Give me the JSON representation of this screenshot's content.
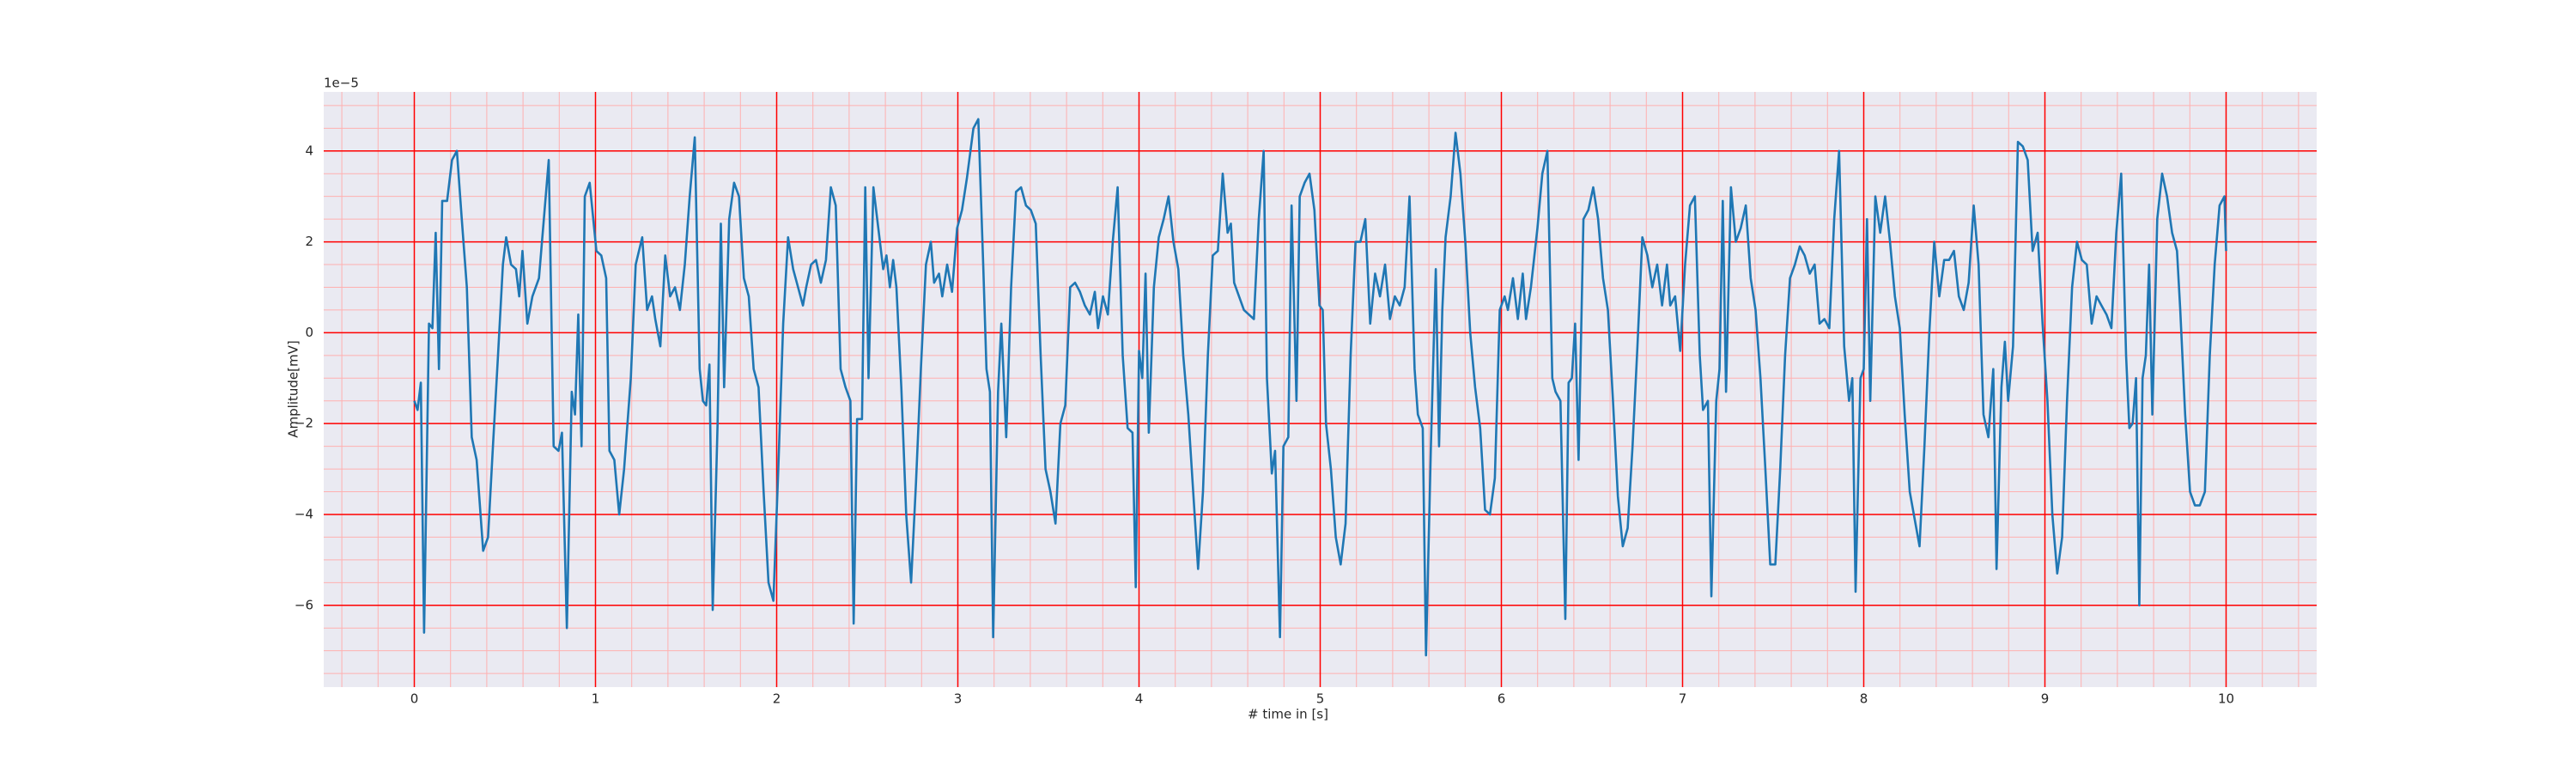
{
  "chart_data": {
    "type": "line",
    "xlabel": "# time in [s]",
    "ylabel": "Amplitude[mV]",
    "y_offset_label": "1e−5",
    "color": "#1f77b4",
    "grid": true,
    "grid_color": "#ff0000",
    "minor_grid_color": "#ffb0b0",
    "minor_grid_step": {
      "x": 0.2,
      "y": 0.5
    },
    "xlim": [
      -0.5,
      10.5
    ],
    "ylim": [
      -7.8,
      5.3
    ],
    "xticks": [
      0,
      1,
      2,
      3,
      4,
      5,
      6,
      7,
      8,
      9,
      10
    ],
    "yticks": [
      {
        "value": -6,
        "label": "−6"
      },
      {
        "value": -4,
        "label": "−4"
      },
      {
        "value": -2,
        "label": "−2"
      },
      0,
      2,
      4
    ],
    "x": [
      0.0,
      0.018,
      0.036,
      0.054,
      0.081,
      0.1,
      0.118,
      0.136,
      0.154,
      0.181,
      0.208,
      0.235,
      0.262,
      0.29,
      0.317,
      0.344,
      0.38,
      0.407,
      0.434,
      0.462,
      0.489,
      0.507,
      0.534,
      0.561,
      0.579,
      0.597,
      0.624,
      0.652,
      0.688,
      0.715,
      0.742,
      0.769,
      0.796,
      0.815,
      0.842,
      0.869,
      0.887,
      0.905,
      0.923,
      0.941,
      0.968,
      1.005,
      1.032,
      1.059,
      1.077,
      1.104,
      1.131,
      1.158,
      1.195,
      1.222,
      1.258,
      1.285,
      1.312,
      1.33,
      1.358,
      1.385,
      1.412,
      1.439,
      1.466,
      1.493,
      1.52,
      1.548,
      1.575,
      1.593,
      1.611,
      1.629,
      1.647,
      1.674,
      1.692,
      1.71,
      1.738,
      1.765,
      1.792,
      1.819,
      1.846,
      1.873,
      1.9,
      1.928,
      1.955,
      1.982,
      2.009,
      2.036,
      2.063,
      2.091,
      2.118,
      2.145,
      2.163,
      2.19,
      2.217,
      2.244,
      2.272,
      2.299,
      2.326,
      2.353,
      2.38,
      2.407,
      2.425,
      2.444,
      2.471,
      2.489,
      2.507,
      2.534,
      2.561,
      2.588,
      2.606,
      2.625,
      2.643,
      2.661,
      2.688,
      2.715,
      2.742,
      2.769,
      2.796,
      2.824,
      2.851,
      2.869,
      2.896,
      2.914,
      2.941,
      2.968,
      2.996,
      3.023,
      3.05,
      3.086,
      3.113,
      3.14,
      3.158,
      3.177,
      3.195,
      3.222,
      3.24,
      3.267,
      3.294,
      3.321,
      3.349,
      3.376,
      3.403,
      3.43,
      3.457,
      3.484,
      3.511,
      3.539,
      3.566,
      3.593,
      3.62,
      3.647,
      3.674,
      3.701,
      3.729,
      3.756,
      3.774,
      3.801,
      3.828,
      3.855,
      3.882,
      3.91,
      3.937,
      3.964,
      3.982,
      4.0,
      4.018,
      4.036,
      4.054,
      4.082,
      4.109,
      4.136,
      4.163,
      4.19,
      4.217,
      4.244,
      4.272,
      4.299,
      4.326,
      4.353,
      4.38,
      4.407,
      4.435,
      4.462,
      4.489,
      4.507,
      4.525,
      4.552,
      4.579,
      4.606,
      4.634,
      4.661,
      4.688,
      4.706,
      4.733,
      4.751,
      4.778,
      4.797,
      4.824,
      4.842,
      4.869,
      4.887,
      4.914,
      4.941,
      4.968,
      4.996,
      5.014,
      5.032,
      5.059,
      5.086,
      5.113,
      5.14,
      5.168,
      5.195,
      5.222,
      5.249,
      5.276,
      5.303,
      5.33,
      5.358,
      5.385,
      5.412,
      5.439,
      5.466,
      5.493,
      5.521,
      5.539,
      5.566,
      5.584,
      5.611,
      5.638,
      5.656,
      5.674,
      5.692,
      5.72,
      5.747,
      5.774,
      5.801,
      5.828,
      5.855,
      5.883,
      5.91,
      5.937,
      5.964,
      5.991,
      6.018,
      6.036,
      6.064,
      6.091,
      6.118,
      6.136,
      6.163,
      6.199,
      6.226,
      6.254,
      6.281,
      6.299,
      6.326,
      6.353,
      6.371,
      6.389,
      6.407,
      6.426,
      6.453,
      6.48,
      6.507,
      6.534,
      6.561,
      6.588,
      6.616,
      6.643,
      6.67,
      6.697,
      6.724,
      6.751,
      6.778,
      6.806,
      6.833,
      6.86,
      6.887,
      6.914,
      6.932,
      6.959,
      6.987,
      7.014,
      7.041,
      7.068,
      7.095,
      7.113,
      7.14,
      7.159,
      7.186,
      7.204,
      7.222,
      7.24,
      7.267,
      7.294,
      7.321,
      7.349,
      7.376,
      7.403,
      7.43,
      7.457,
      7.484,
      7.512,
      7.539,
      7.566,
      7.593,
      7.62,
      7.647,
      7.674,
      7.702,
      7.729,
      7.756,
      7.783,
      7.81,
      7.837,
      7.864,
      7.892,
      7.919,
      7.937,
      7.955,
      7.982,
      8.0,
      8.018,
      8.036,
      8.064,
      8.091,
      8.118,
      8.145,
      8.172,
      8.199,
      8.226,
      8.254,
      8.281,
      8.308,
      8.335,
      8.362,
      8.389,
      8.417,
      8.444,
      8.471,
      8.498,
      8.525,
      8.552,
      8.579,
      8.607,
      8.634,
      8.661,
      8.688,
      8.715,
      8.733,
      8.76,
      8.779,
      8.797,
      8.824,
      8.851,
      8.878,
      8.905,
      8.932,
      8.96,
      8.987,
      9.014,
      9.041,
      9.068,
      9.095,
      9.122,
      9.15,
      9.177,
      9.204,
      9.231,
      9.258,
      9.285,
      9.312,
      9.34,
      9.367,
      9.394,
      9.421,
      9.448,
      9.466,
      9.484,
      9.503,
      9.521,
      9.539,
      9.557,
      9.575,
      9.593,
      9.62,
      9.647,
      9.674,
      9.702,
      9.729,
      9.747,
      9.774,
      9.801,
      9.828,
      9.855,
      9.883,
      9.91,
      9.937,
      9.964,
      9.991,
      10.0
    ],
    "values": [
      -1.5,
      -1.7,
      -1.1,
      -6.6,
      0.2,
      0.1,
      2.2,
      -0.8,
      2.9,
      2.9,
      3.8,
      4.0,
      2.5,
      1.0,
      -2.3,
      -2.8,
      -4.8,
      -4.5,
      -2.5,
      -0.5,
      1.5,
      2.1,
      1.5,
      1.4,
      0.8,
      1.8,
      0.2,
      0.8,
      1.2,
      2.5,
      3.8,
      -2.5,
      -2.6,
      -2.2,
      -6.5,
      -1.3,
      -1.8,
      0.4,
      -2.5,
      3.0,
      3.3,
      1.8,
      1.7,
      1.2,
      -2.6,
      -2.8,
      -4.0,
      -3.0,
      -1.0,
      1.5,
      2.1,
      0.5,
      0.8,
      0.3,
      -0.3,
      1.7,
      0.8,
      1.0,
      0.5,
      1.5,
      3.0,
      4.3,
      -0.8,
      -1.5,
      -1.6,
      -0.7,
      -6.1,
      -2.0,
      2.4,
      -1.2,
      2.5,
      3.3,
      3.0,
      1.2,
      0.8,
      -0.8,
      -1.2,
      -3.5,
      -5.5,
      -5.9,
      -3.0,
      0.2,
      2.1,
      1.4,
      1.0,
      0.6,
      1.0,
      1.5,
      1.6,
      1.1,
      1.6,
      3.2,
      2.8,
      -0.8,
      -1.2,
      -1.5,
      -6.4,
      -1.9,
      -1.9,
      3.2,
      -1.0,
      3.2,
      2.3,
      1.4,
      1.7,
      1.0,
      1.6,
      1.0,
      -1.2,
      -4.0,
      -5.5,
      -3.3,
      -0.8,
      1.5,
      2.0,
      1.1,
      1.3,
      0.8,
      1.5,
      0.9,
      2.3,
      2.7,
      3.4,
      4.5,
      4.7,
      1.5,
      -0.8,
      -1.3,
      -6.7,
      -1.3,
      0.2,
      -2.3,
      1.0,
      3.1,
      3.2,
      2.8,
      2.7,
      2.4,
      -0.5,
      -3.0,
      -3.5,
      -4.2,
      -2.0,
      -1.6,
      1.0,
      1.1,
      0.9,
      0.6,
      0.4,
      0.9,
      0.1,
      0.8,
      0.4,
      2.0,
      3.2,
      -0.5,
      -2.1,
      -2.2,
      -5.6,
      -0.4,
      -1.0,
      1.3,
      -2.2,
      1.0,
      2.1,
      2.5,
      3.0,
      2.0,
      1.4,
      -0.5,
      -1.8,
      -3.5,
      -5.2,
      -3.5,
      -0.5,
      1.7,
      1.8,
      3.5,
      2.2,
      2.4,
      1.1,
      0.8,
      0.5,
      0.4,
      0.3,
      2.5,
      4.0,
      -1.0,
      -3.1,
      -2.6,
      -6.7,
      -2.5,
      -2.3,
      2.8,
      -1.5,
      3.0,
      3.3,
      3.5,
      2.7,
      0.6,
      0.5,
      -2.0,
      -3.0,
      -4.5,
      -5.1,
      -4.2,
      -0.5,
      2.0,
      2.0,
      2.5,
      0.2,
      1.3,
      0.8,
      1.5,
      0.3,
      0.8,
      0.6,
      1.0,
      3.0,
      -0.8,
      -1.8,
      -2.1,
      -7.1,
      -2.5,
      1.4,
      -2.5,
      0.5,
      2.1,
      3.0,
      4.4,
      3.5,
      2.0,
      0.0,
      -1.2,
      -2.1,
      -3.9,
      -4.0,
      -3.2,
      0.5,
      0.8,
      0.5,
      1.2,
      0.3,
      1.3,
      0.3,
      1.0,
      2.3,
      3.5,
      4.0,
      -1.0,
      -1.3,
      -1.5,
      -6.3,
      -1.1,
      -1.0,
      0.2,
      -2.8,
      2.5,
      2.7,
      3.2,
      2.5,
      1.2,
      0.5,
      -1.5,
      -3.6,
      -4.7,
      -4.3,
      -2.5,
      -0.3,
      2.1,
      1.7,
      1.0,
      1.5,
      0.6,
      1.5,
      0.6,
      0.8,
      -0.4,
      1.5,
      2.8,
      3.0,
      -0.5,
      -1.7,
      -1.5,
      -5.8,
      -1.5,
      -0.8,
      2.9,
      -1.3,
      3.2,
      2.0,
      2.3,
      2.8,
      1.2,
      0.5,
      -1.0,
      -3.0,
      -5.1,
      -5.1,
      -3.0,
      -0.5,
      1.2,
      1.5,
      1.9,
      1.7,
      1.3,
      1.5,
      0.2,
      0.3,
      0.1,
      2.5,
      4.0,
      -0.3,
      -1.5,
      -1.0,
      -5.7,
      -1.0,
      -0.8,
      2.5,
      -1.5,
      3.0,
      2.2,
      3.0,
      2.0,
      0.8,
      0.1,
      -1.8,
      -3.5,
      -4.1,
      -4.7,
      -2.5,
      0.0,
      2.0,
      0.8,
      1.6,
      1.6,
      1.8,
      0.8,
      0.5,
      1.1,
      2.8,
      1.5,
      -1.8,
      -2.3,
      -0.8,
      -5.2,
      -1.2,
      -0.2,
      -1.5,
      -0.3,
      4.2,
      4.1,
      3.8,
      1.8,
      2.2,
      0.2,
      -1.5,
      -4.0,
      -5.3,
      -4.5,
      -1.5,
      1.0,
      2.0,
      1.6,
      1.5,
      0.2,
      0.8,
      0.6,
      0.4,
      0.1,
      2.2,
      3.5,
      -0.5,
      -2.1,
      -2.0,
      -1.0,
      -6.0,
      -1.0,
      -0.5,
      1.5,
      -1.8,
      2.5,
      3.5,
      3.0,
      2.2,
      1.8,
      0.5,
      -1.8,
      -3.5,
      -3.8,
      -3.8,
      -3.5,
      -0.5,
      1.5,
      2.8,
      3.0,
      1.8
    ]
  }
}
